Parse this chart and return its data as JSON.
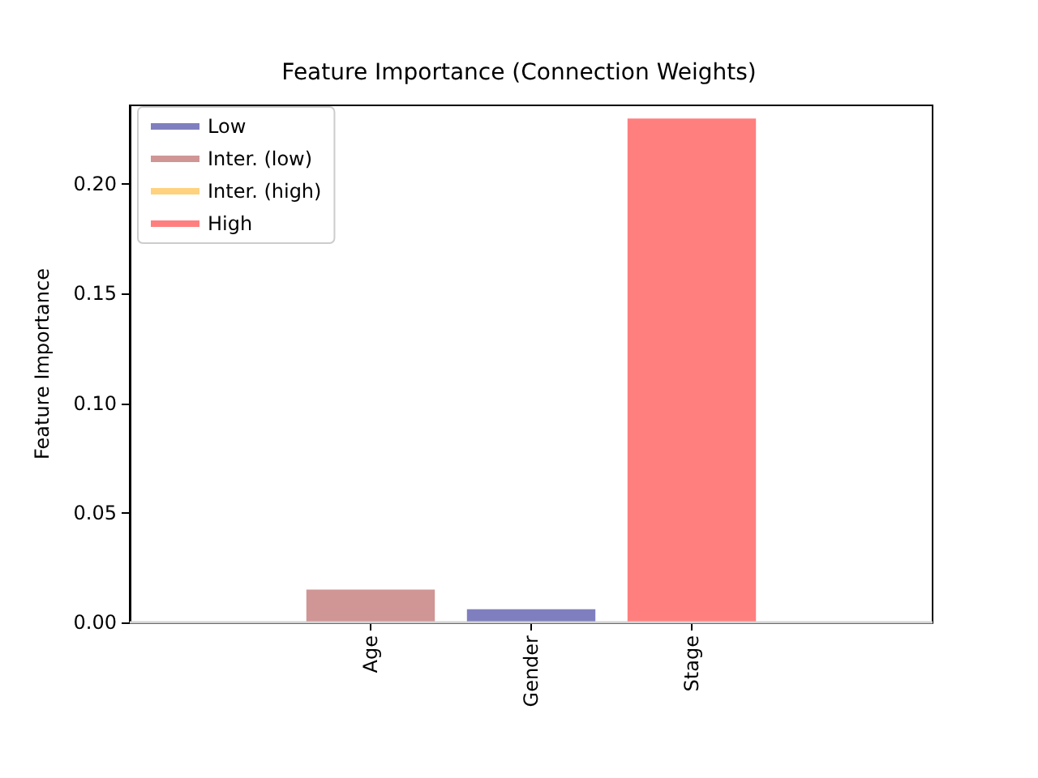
{
  "chart_data": {
    "type": "bar",
    "title": "Feature Importance (Connection Weights)",
    "ylabel": "Feature Importance",
    "categories": [
      null,
      "Age",
      "Gender",
      "Stage",
      null
    ],
    "series": [
      {
        "name": "Low",
        "color": "#7f7fbf",
        "values": [
          null,
          null,
          0.006,
          null,
          null
        ]
      },
      {
        "name": "Inter. (low)",
        "color": "#d09595",
        "values": [
          null,
          0.015,
          null,
          null,
          null
        ]
      },
      {
        "name": "Inter. (high)",
        "color": "#ffd27f",
        "values": [
          null,
          null,
          null,
          null,
          null
        ]
      },
      {
        "name": "High",
        "color": "#ff7f7f",
        "values": [
          null,
          null,
          null,
          0.23,
          null
        ]
      }
    ],
    "ylim": [
      0,
      0.236
    ],
    "yticks": [
      {
        "value": 0,
        "label": "0.00"
      },
      {
        "value": 0.05,
        "label": "0.05"
      },
      {
        "value": 0.1,
        "label": "0.10"
      },
      {
        "value": 0.15,
        "label": "0.15"
      },
      {
        "value": 0.2,
        "label": "0.20"
      }
    ],
    "ref_lines": [
      {
        "axis": "y",
        "value": 0,
        "color": "#d3d3d3"
      }
    ],
    "grid": false,
    "legend": "top left"
  }
}
